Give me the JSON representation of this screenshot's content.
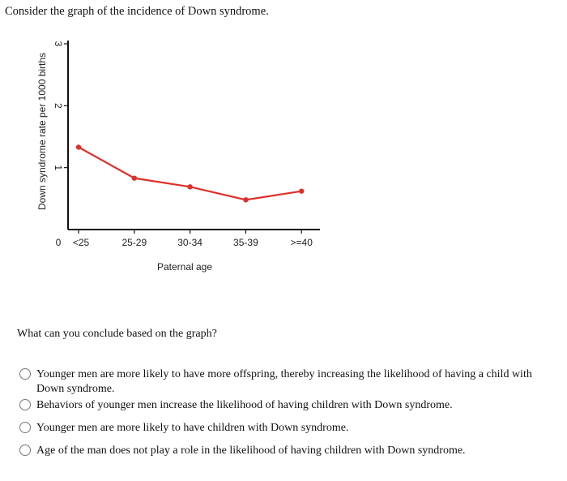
{
  "title": "Consider the graph of the incidence of Down syndrome.",
  "chart_data": {
    "type": "line",
    "categories": [
      "<25",
      "25-29",
      "30-34",
      "35-39",
      ">=40"
    ],
    "values": [
      1.33,
      0.83,
      0.69,
      0.48,
      0.62
    ],
    "xlabel": "Paternal age",
    "ylabel": "Down syndrome rate per 1000 births",
    "yticks": [
      "0",
      "1",
      "2",
      "3"
    ],
    "ylim": [
      0,
      3
    ],
    "grid": false,
    "color": "#e0302a"
  },
  "question": "What can you conclude based on the graph?",
  "options": [
    "Younger men are more likely to have more offspring, thereby increasing the likelihood of having a child with Down syndrome.",
    "Behaviors of younger men increase the likelihood of having children with Down syndrome.",
    "Younger men are more likely to have children with Down syndrome.",
    "Age of the man does not play a role in the likelihood of having children with Down syndrome."
  ]
}
